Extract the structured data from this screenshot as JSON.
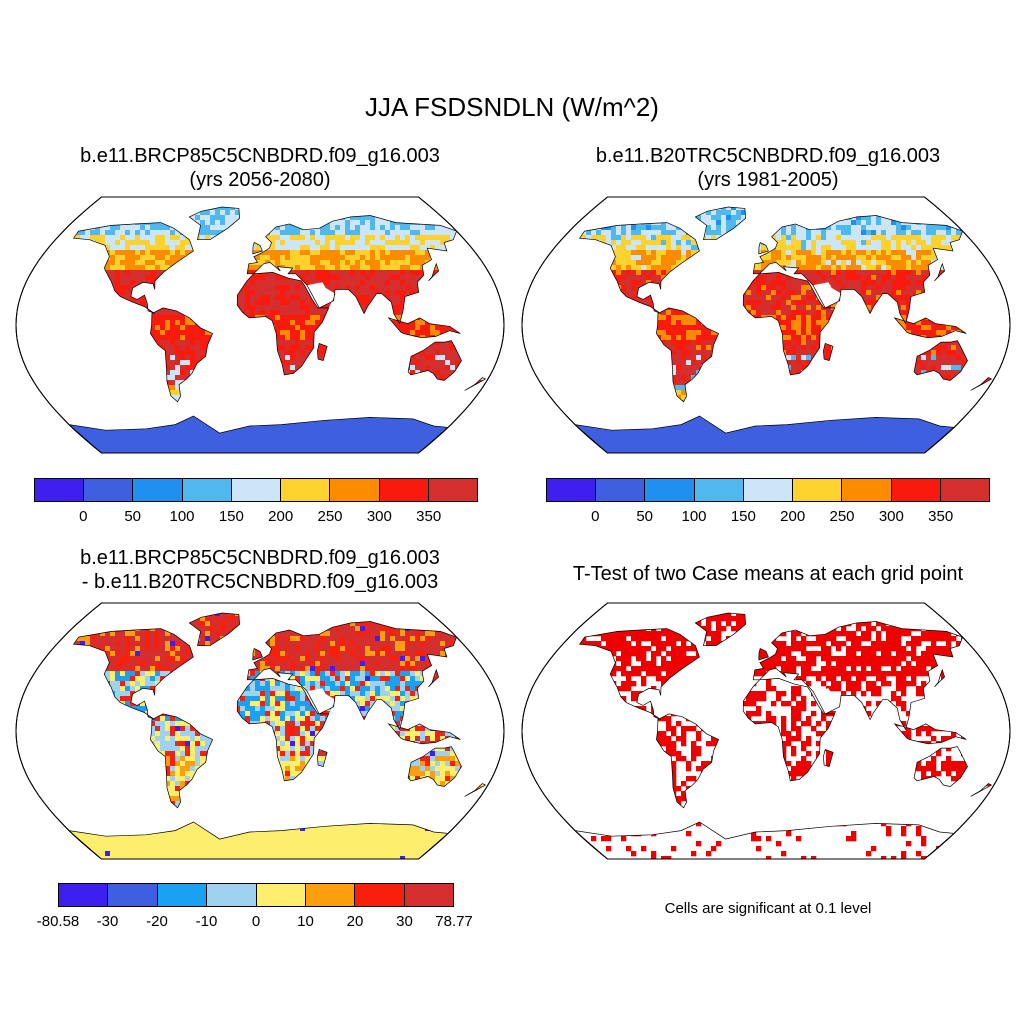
{
  "title": "JJA FSDSNDLN (W/m^2)",
  "panels": {
    "top_left": {
      "title_line1": "b.e11.BRCP85C5CNBDRD.f09_g16.003",
      "title_line2": "(yrs 2056-2080)"
    },
    "top_right": {
      "title_line1": "b.e11.B20TRC5CNBDRD.f09_g16.003",
      "title_line2": "(yrs 1981-2005)"
    },
    "bottom_left": {
      "title_line1": "b.e11.BRCP85C5CNBDRD.f09_g16.003",
      "title_line2": "- b.e11.B20TRC5CNBDRD.f09_g16.003"
    },
    "bottom_right": {
      "title_line1": "T-Test of two Case means at each grid point",
      "note": "Cells are significant at 0.1 level"
    }
  },
  "colorbars": {
    "absolute": {
      "colors": [
        "#3e1ff0",
        "#3d5fe0",
        "#1f8ff0",
        "#4fb8ee",
        "#cde6f7",
        "#fdd12e",
        "#fb8c00",
        "#f81a0d",
        "#d42f2e"
      ],
      "labels": [
        "0",
        "50",
        "100",
        "150",
        "200",
        "250",
        "300",
        "350"
      ]
    },
    "difference": {
      "colors": [
        "#3e1ff0",
        "#3d5fe0",
        "#1aa1f2",
        "#9ed2f0",
        "#fdee6e",
        "#fb9f0e",
        "#f8200d",
        "#d42f2e"
      ],
      "labels": [
        "-80.58",
        "-30",
        "-20",
        "-10",
        "0",
        "10",
        "20",
        "30",
        "78.77"
      ]
    },
    "significance": {
      "color": "#ee0000"
    }
  }
}
